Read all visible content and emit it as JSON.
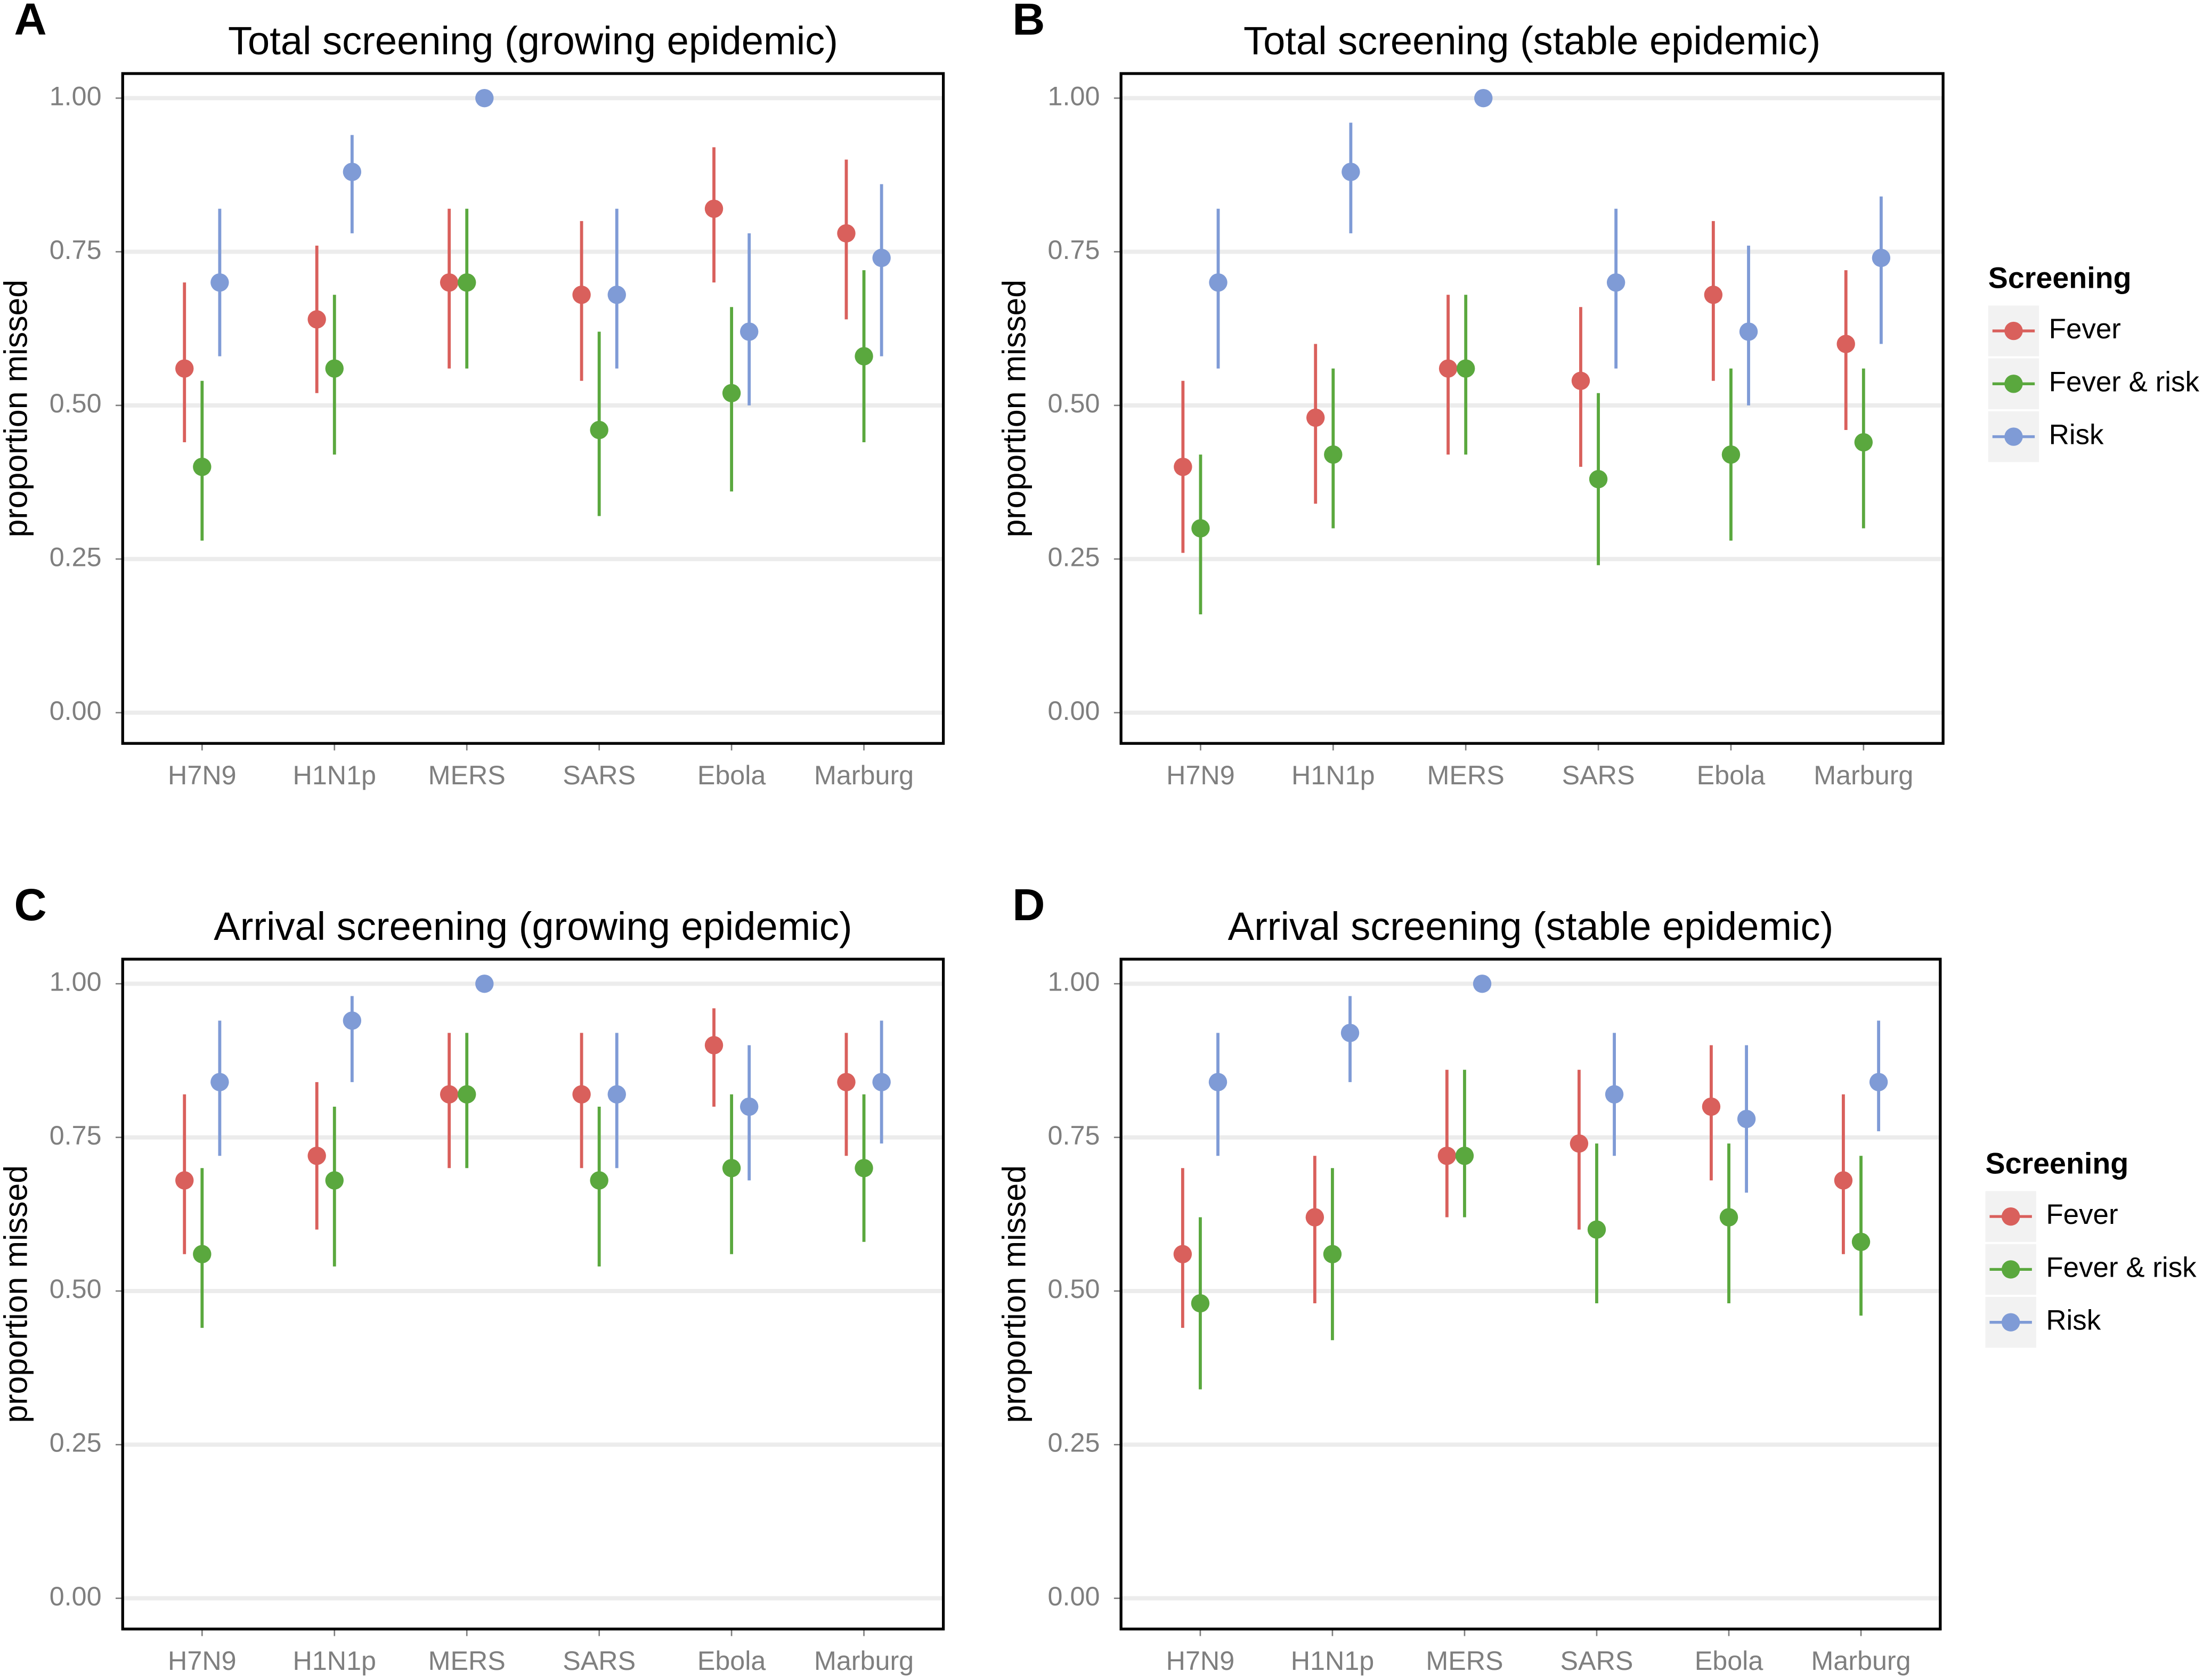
{
  "chart_data": [
    {
      "type": "errorpoint",
      "panel_label": "A",
      "title": "Total screening (growing epidemic)",
      "y_label": "proportion missed",
      "categories": [
        "H7N9",
        "H1N1p",
        "MERS",
        "SARS",
        "Ebola",
        "Marburg"
      ],
      "ylim": [
        -0.05,
        1.04
      ],
      "yticks": [
        {
          "value": 0,
          "label": "0.00"
        },
        {
          "value": 0.25,
          "label": "0.25"
        },
        {
          "value": 0.5,
          "label": "0.50"
        },
        {
          "value": 0.75,
          "label": "0.75"
        },
        {
          "value": 1,
          "label": "1.00"
        }
      ],
      "grid": true,
      "series": [
        {
          "name": "Fever",
          "color": "#d9605c",
          "values": [
            0.56,
            0.64,
            0.7,
            0.68,
            0.82,
            0.78
          ],
          "lower": [
            0.44,
            0.52,
            0.56,
            0.54,
            0.7,
            0.64
          ],
          "upper": [
            0.7,
            0.76,
            0.82,
            0.8,
            0.92,
            0.9
          ]
        },
        {
          "name": "Fever & risk",
          "color": "#5aa83e",
          "values": [
            0.4,
            0.56,
            0.7,
            0.46,
            0.52,
            0.58
          ],
          "lower": [
            0.28,
            0.42,
            0.56,
            0.32,
            0.36,
            0.44
          ],
          "upper": [
            0.54,
            0.68,
            0.82,
            0.62,
            0.66,
            0.72
          ]
        },
        {
          "name": "Risk",
          "color": "#7f9bd6",
          "values": [
            0.7,
            0.88,
            1.0,
            0.68,
            0.62,
            0.74
          ],
          "lower": [
            0.58,
            0.78,
            1.0,
            0.56,
            0.5,
            0.58
          ],
          "upper": [
            0.82,
            0.94,
            1.0,
            0.82,
            0.78,
            0.86
          ]
        }
      ]
    },
    {
      "type": "errorpoint",
      "panel_label": "B",
      "title": "Total screening (stable epidemic)",
      "y_label": "proportion missed",
      "categories": [
        "H7N9",
        "H1N1p",
        "MERS",
        "SARS",
        "Ebola",
        "Marburg"
      ],
      "ylim": [
        -0.05,
        1.04
      ],
      "yticks": [
        {
          "value": 0,
          "label": "0.00"
        },
        {
          "value": 0.25,
          "label": "0.25"
        },
        {
          "value": 0.5,
          "label": "0.50"
        },
        {
          "value": 0.75,
          "label": "0.75"
        },
        {
          "value": 1,
          "label": "1.00"
        }
      ],
      "grid": true,
      "legend": "right",
      "legend_title": "Screening",
      "series": [
        {
          "name": "Fever",
          "color": "#d9605c",
          "values": [
            0.4,
            0.48,
            0.56,
            0.54,
            0.68,
            0.6
          ],
          "lower": [
            0.26,
            0.34,
            0.42,
            0.4,
            0.54,
            0.46
          ],
          "upper": [
            0.54,
            0.6,
            0.68,
            0.66,
            0.8,
            0.72
          ]
        },
        {
          "name": "Fever & risk",
          "color": "#5aa83e",
          "values": [
            0.3,
            0.42,
            0.56,
            0.38,
            0.42,
            0.44
          ],
          "lower": [
            0.16,
            0.3,
            0.42,
            0.24,
            0.28,
            0.3
          ],
          "upper": [
            0.42,
            0.56,
            0.68,
            0.52,
            0.56,
            0.56
          ]
        },
        {
          "name": "Risk",
          "color": "#7f9bd6",
          "values": [
            0.7,
            0.88,
            1.0,
            0.7,
            0.62,
            0.74
          ],
          "lower": [
            0.56,
            0.78,
            1.0,
            0.56,
            0.5,
            0.6
          ],
          "upper": [
            0.82,
            0.96,
            1.0,
            0.82,
            0.76,
            0.84
          ]
        }
      ]
    },
    {
      "type": "errorpoint",
      "panel_label": "C",
      "title": "Arrival screening (growing epidemic)",
      "y_label": "proportion missed",
      "categories": [
        "H7N9",
        "H1N1p",
        "MERS",
        "SARS",
        "Ebola",
        "Marburg"
      ],
      "ylim": [
        -0.05,
        1.04
      ],
      "yticks": [
        {
          "value": 0,
          "label": "0.00"
        },
        {
          "value": 0.25,
          "label": "0.25"
        },
        {
          "value": 0.5,
          "label": "0.50"
        },
        {
          "value": 0.75,
          "label": "0.75"
        },
        {
          "value": 1,
          "label": "1.00"
        }
      ],
      "grid": true,
      "series": [
        {
          "name": "Fever",
          "color": "#d9605c",
          "values": [
            0.68,
            0.72,
            0.82,
            0.82,
            0.9,
            0.84
          ],
          "lower": [
            0.56,
            0.6,
            0.7,
            0.7,
            0.8,
            0.72
          ],
          "upper": [
            0.82,
            0.84,
            0.92,
            0.92,
            0.96,
            0.92
          ]
        },
        {
          "name": "Fever & risk",
          "color": "#5aa83e",
          "values": [
            0.56,
            0.68,
            0.82,
            0.68,
            0.7,
            0.7
          ],
          "lower": [
            0.44,
            0.54,
            0.7,
            0.54,
            0.56,
            0.58
          ],
          "upper": [
            0.7,
            0.8,
            0.92,
            0.8,
            0.82,
            0.82
          ]
        },
        {
          "name": "Risk",
          "color": "#7f9bd6",
          "values": [
            0.84,
            0.94,
            1.0,
            0.82,
            0.8,
            0.84
          ],
          "lower": [
            0.72,
            0.84,
            1.0,
            0.7,
            0.68,
            0.74
          ],
          "upper": [
            0.94,
            0.98,
            1.0,
            0.92,
            0.9,
            0.94
          ]
        }
      ]
    },
    {
      "type": "errorpoint",
      "panel_label": "D",
      "title": "Arrival screening (stable epidemic)",
      "y_label": "proportion missed",
      "categories": [
        "H7N9",
        "H1N1p",
        "MERS",
        "SARS",
        "Ebola",
        "Marburg"
      ],
      "ylim": [
        -0.05,
        1.04
      ],
      "yticks": [
        {
          "value": 0,
          "label": "0.00"
        },
        {
          "value": 0.25,
          "label": "0.25"
        },
        {
          "value": 0.5,
          "label": "0.50"
        },
        {
          "value": 0.75,
          "label": "0.75"
        },
        {
          "value": 1,
          "label": "1.00"
        }
      ],
      "grid": true,
      "legend": "right",
      "legend_title": "Screening",
      "series": [
        {
          "name": "Fever",
          "color": "#d9605c",
          "values": [
            0.56,
            0.62,
            0.72,
            0.74,
            0.8,
            0.68
          ],
          "lower": [
            0.44,
            0.48,
            0.62,
            0.6,
            0.68,
            0.56
          ],
          "upper": [
            0.7,
            0.72,
            0.86,
            0.86,
            0.9,
            0.82
          ]
        },
        {
          "name": "Fever & risk",
          "color": "#5aa83e",
          "values": [
            0.48,
            0.56,
            0.72,
            0.6,
            0.62,
            0.58
          ],
          "lower": [
            0.34,
            0.42,
            0.62,
            0.48,
            0.48,
            0.46
          ],
          "upper": [
            0.62,
            0.7,
            0.86,
            0.74,
            0.74,
            0.72
          ]
        },
        {
          "name": "Risk",
          "color": "#7f9bd6",
          "values": [
            0.84,
            0.92,
            1.0,
            0.82,
            0.78,
            0.84
          ],
          "lower": [
            0.72,
            0.84,
            1.0,
            0.72,
            0.66,
            0.76
          ],
          "upper": [
            0.92,
            0.98,
            1.0,
            0.92,
            0.9,
            0.94
          ]
        }
      ]
    }
  ]
}
